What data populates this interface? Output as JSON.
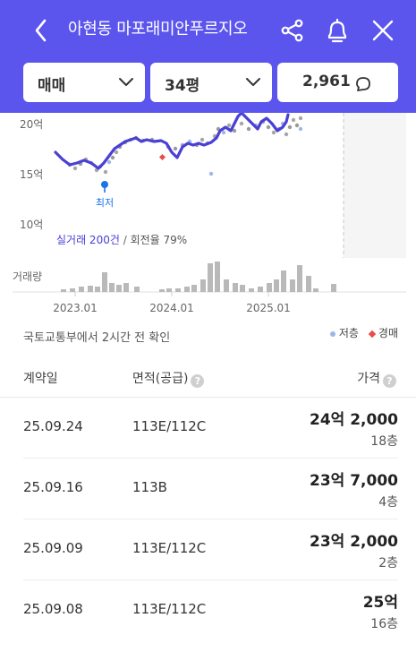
{
  "header": {
    "title": "아현동 마포래미안푸르지오",
    "filters": {
      "trade_type": "매매",
      "size": "34평",
      "count": "2,961"
    }
  },
  "chart": {
    "y_tick_labels": [
      "20억",
      "15억",
      "10억"
    ],
    "low_marker": "최저",
    "summary_primary": "실거래 200건",
    "summary_separator": " / ",
    "summary_secondary": "회전율 79%",
    "volume_label": "거래량",
    "x_tick_labels": [
      "2023.01",
      "2024.01",
      "2025.01"
    ]
  },
  "source_note": "국토교통부에서 2시간 전 확인",
  "legend": {
    "low_floor": "저층",
    "auction": "경매"
  },
  "table": {
    "columns": {
      "date": "계약일",
      "area": "면적(공급)",
      "price": "가격"
    },
    "rows": [
      {
        "date": "25.09.24",
        "area": "113E/112C",
        "price": "24억 2,000",
        "floor": "18층"
      },
      {
        "date": "25.09.16",
        "area": "113B",
        "price": "23억 7,000",
        "floor": "4층"
      },
      {
        "date": "25.09.09",
        "area": "113E/112C",
        "price": "23억 2,000",
        "floor": "2층"
      },
      {
        "date": "25.09.08",
        "area": "113E/112C",
        "price": "25억",
        "floor": "16층"
      }
    ]
  },
  "colors": {
    "brand": "#5b55ee",
    "line": "#4a3fd6",
    "volume_bar": "#b9b9b9",
    "low_floor_dot": "#9db8e8",
    "auction_marker": "#ea4b4b",
    "low_marker": "#1a73e8"
  },
  "icons": {
    "back": "chevron-left-icon",
    "share": "share-icon",
    "bell": "bell-icon",
    "close": "close-icon",
    "dropdown": "chevron-down-icon",
    "comment": "speech-bubble-icon",
    "help": "question-circle-icon"
  }
}
